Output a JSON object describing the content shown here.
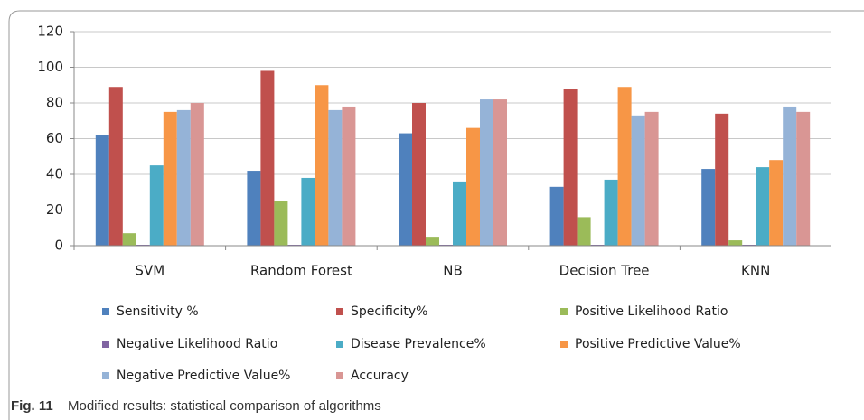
{
  "chart_data": {
    "type": "bar",
    "categories": [
      "SVM",
      "Random Forest",
      "NB",
      "Decision Tree",
      "KNN"
    ],
    "series": [
      {
        "name": "Sensitivity %",
        "color": "#4f81bd",
        "values": [
          62,
          42,
          63,
          33,
          43
        ]
      },
      {
        "name": "Specificity%",
        "color": "#c0504d",
        "values": [
          89,
          98,
          80,
          88,
          74
        ]
      },
      {
        "name": "Positive Likelihood Ratio",
        "color": "#9bbb59",
        "values": [
          7,
          25,
          5,
          16,
          3
        ]
      },
      {
        "name": "Negative Likelihood Ratio",
        "color": "#8064a2",
        "values": [
          0.5,
          0.5,
          0.5,
          0.5,
          0.5
        ]
      },
      {
        "name": "Disease Prevalence%",
        "color": "#4bacc6",
        "values": [
          45,
          38,
          36,
          37,
          44
        ]
      },
      {
        "name": "Positive Predictive Value%",
        "color": "#f79646",
        "values": [
          75,
          90,
          66,
          89,
          48
        ]
      },
      {
        "name": "Negative Predictive Value%",
        "color": "#95b3d7",
        "values": [
          76,
          76,
          82,
          73,
          78
        ]
      },
      {
        "name": "Accuracy",
        "color": "#d99694",
        "values": [
          80,
          78,
          82,
          75,
          75
        ]
      }
    ],
    "ylim": [
      0,
      120
    ],
    "yticks": [
      0,
      20,
      40,
      60,
      80,
      100,
      120
    ],
    "grid": true,
    "figure_label": "Fig. 11",
    "caption": "Modified results: statistical comparison of algorithms"
  }
}
